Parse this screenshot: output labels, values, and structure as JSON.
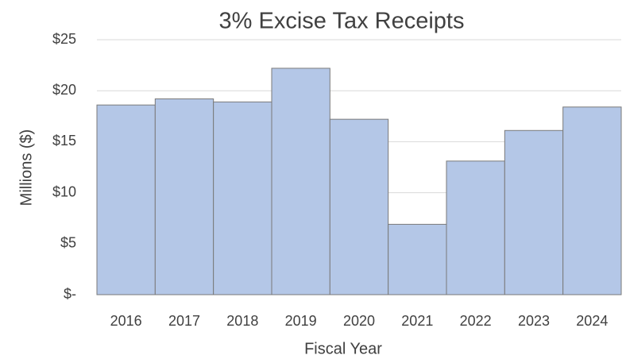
{
  "chart_data": {
    "type": "bar",
    "title": "3% Excise Tax Receipts",
    "x_label": "Fiscal Year",
    "y_label": "Millions ($)",
    "categories": [
      "2016",
      "2017",
      "2018",
      "2019",
      "2020",
      "2021",
      "2022",
      "2023",
      "2024"
    ],
    "values": [
      18.6,
      19.2,
      18.9,
      22.2,
      17.2,
      6.9,
      13.1,
      16.1,
      18.4
    ],
    "color": "#b4c7e7",
    "ylim": [
      0,
      25
    ],
    "yticks": [
      {
        "value": 0,
        "label": "$-"
      },
      {
        "value": 5,
        "label": "$5"
      },
      {
        "value": 10,
        "label": "$10"
      },
      {
        "value": 15,
        "label": "$15"
      },
      {
        "value": 20,
        "label": "$20"
      },
      {
        "value": 25,
        "label": "$25"
      }
    ],
    "grid": true
  }
}
